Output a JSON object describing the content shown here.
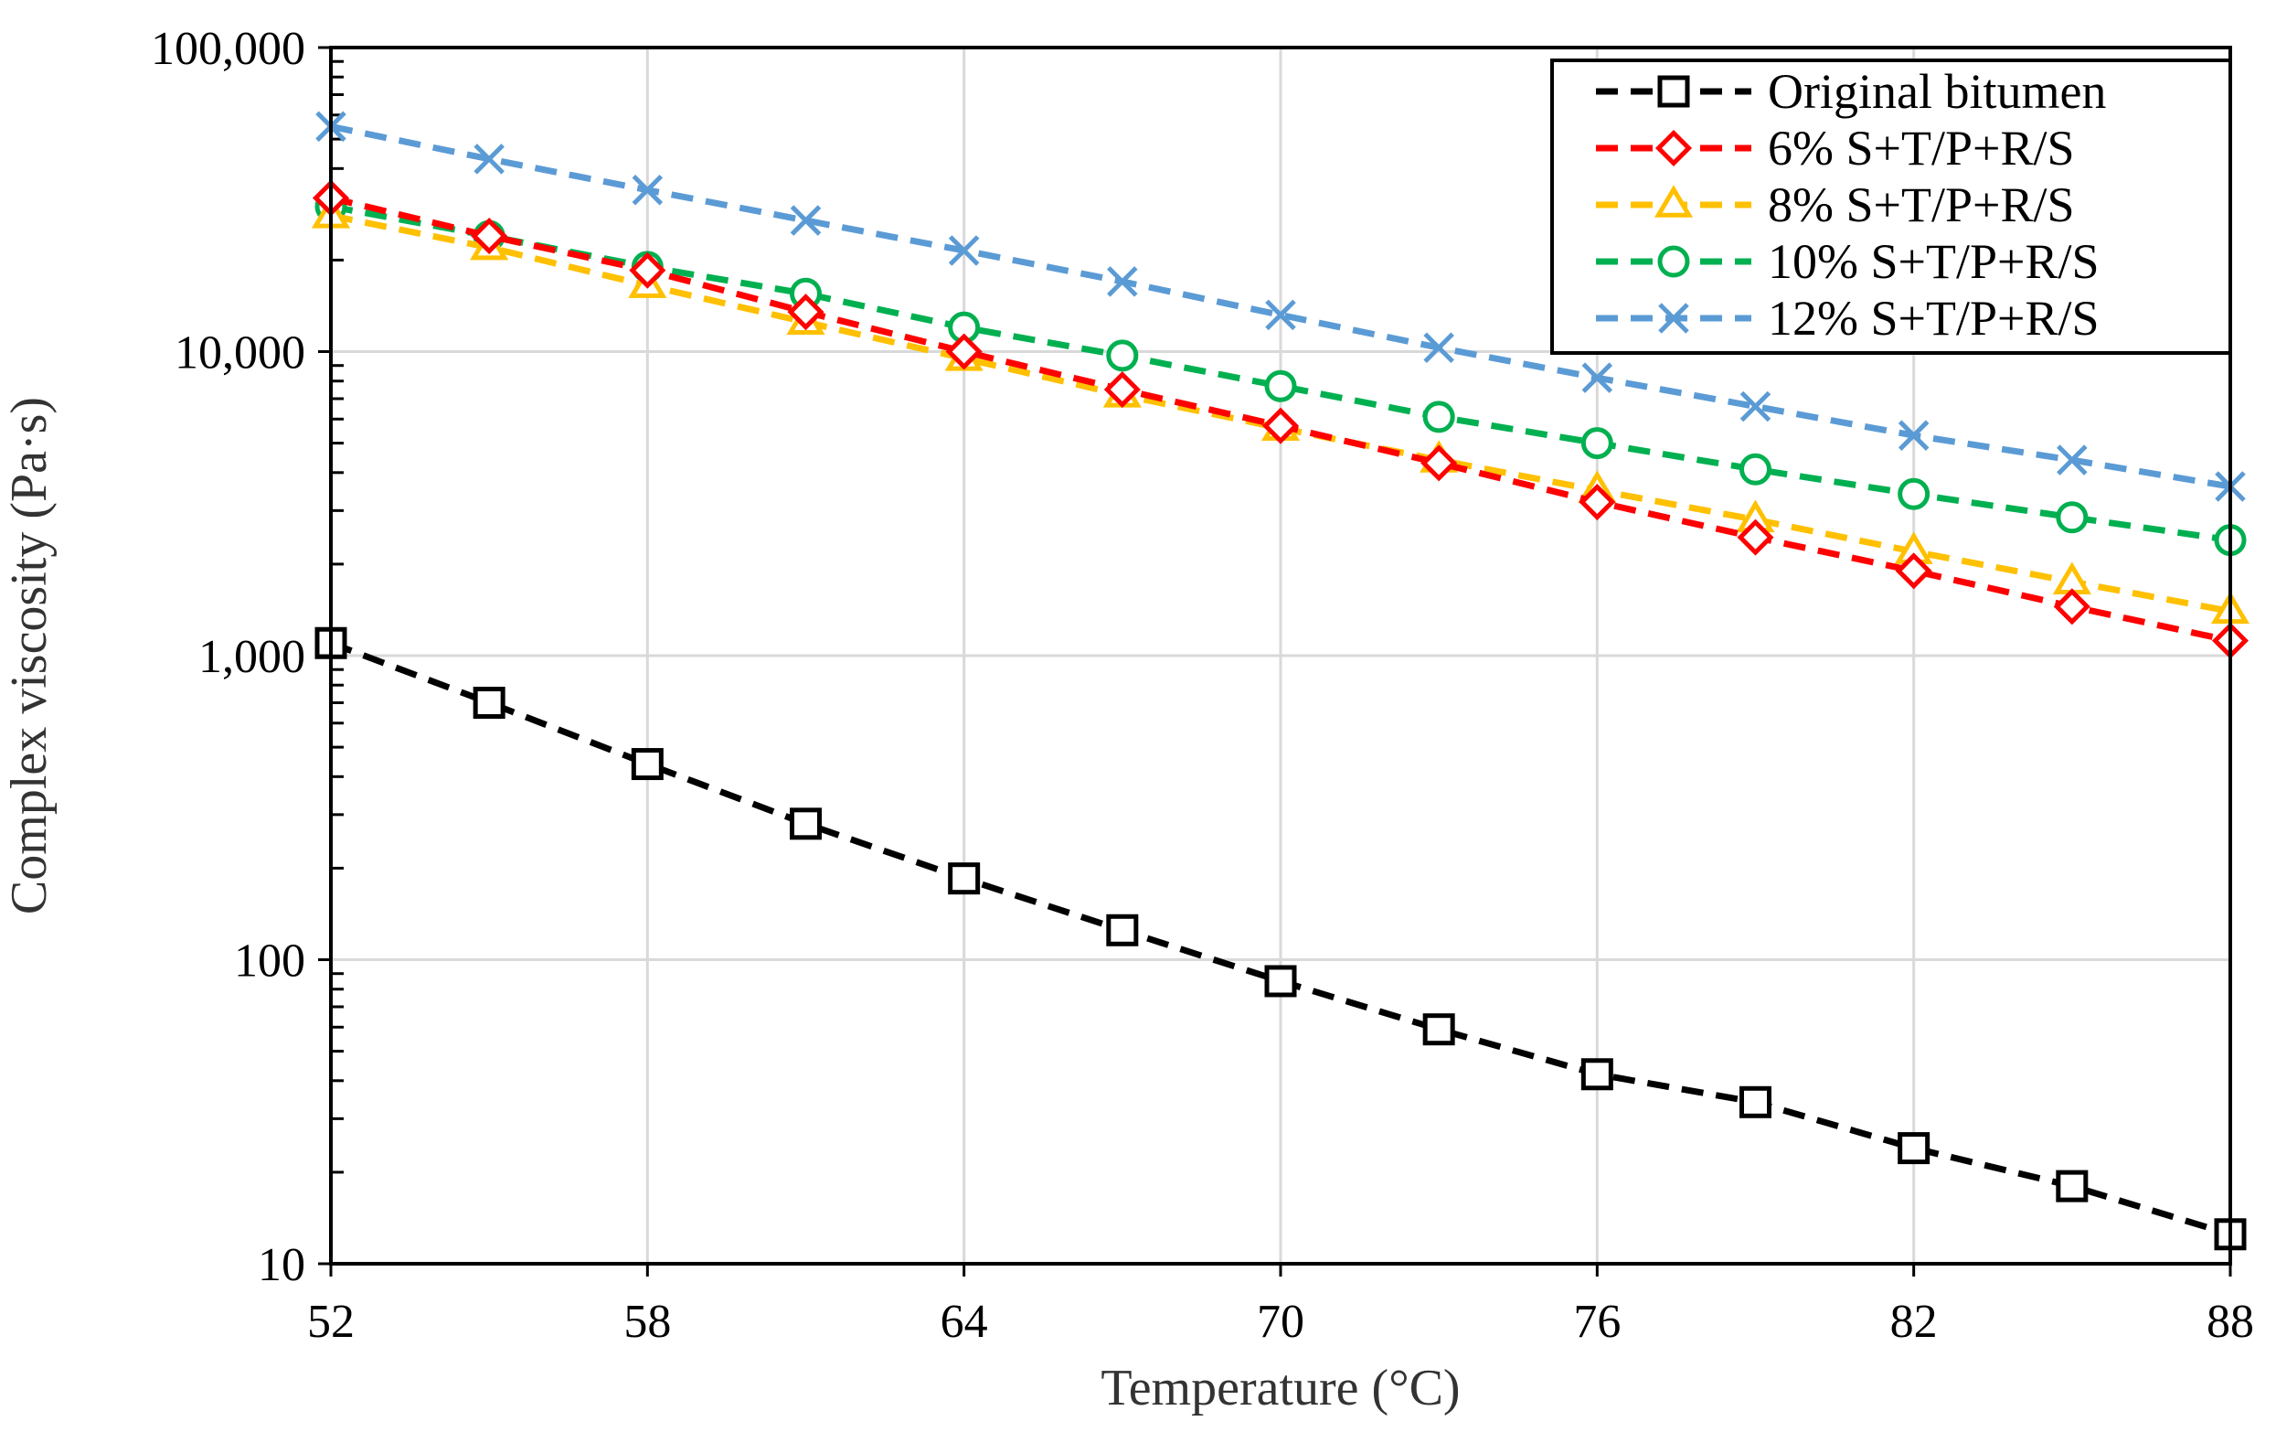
{
  "chart_data": {
    "type": "line",
    "title": "",
    "xlabel": "Temperature (°C)",
    "ylabel": "Complex viscosity (Pa·s)",
    "xlim": [
      52,
      88
    ],
    "ylim": [
      10,
      100000
    ],
    "yscale": "log",
    "grid": true,
    "legend_position": "top-right",
    "x_ticks": [
      52,
      58,
      64,
      70,
      76,
      82,
      88
    ],
    "x_tick_labels": [
      "52",
      "58",
      "64",
      "70",
      "76",
      "82",
      "88"
    ],
    "y_ticks": [
      10,
      100,
      1000,
      10000,
      100000
    ],
    "y_tick_labels": [
      "10",
      "100",
      "1,000",
      "10,000",
      "100,000"
    ],
    "x": [
      52,
      55,
      58,
      61,
      64,
      67,
      70,
      73,
      76,
      79,
      82,
      85,
      88
    ],
    "series": [
      {
        "name": "Original bitumen",
        "color": "#000000",
        "marker": "square",
        "values": [
          1100,
          700,
          440,
          280,
          185,
          125,
          85,
          59,
          42,
          34,
          24,
          18,
          12.5
        ]
      },
      {
        "name": "6% S+T/P+R/S",
        "color": "#ff0000",
        "marker": "diamond",
        "values": [
          32000,
          24000,
          18500,
          13500,
          10000,
          7500,
          5700,
          4300,
          3200,
          2450,
          1900,
          1450,
          1120
        ]
      },
      {
        "name": "8% S+T/P+R/S",
        "color": "#ffc000",
        "marker": "triangle",
        "values": [
          28000,
          22000,
          16500,
          12500,
          9500,
          7200,
          5600,
          4400,
          3500,
          2800,
          2200,
          1750,
          1400
        ]
      },
      {
        "name": "10% S+T/P+R/S",
        "color": "#00b050",
        "marker": "circle",
        "values": [
          30000,
          24000,
          19000,
          15500,
          12000,
          9700,
          7700,
          6100,
          5000,
          4100,
          3400,
          2850,
          2400
        ]
      },
      {
        "name": "12% S+T/P+R/S",
        "color": "#5b9bd5",
        "marker": "x",
        "values": [
          55000,
          43000,
          34000,
          27000,
          21500,
          17000,
          13200,
          10300,
          8200,
          6600,
          5300,
          4400,
          3600
        ]
      }
    ]
  }
}
